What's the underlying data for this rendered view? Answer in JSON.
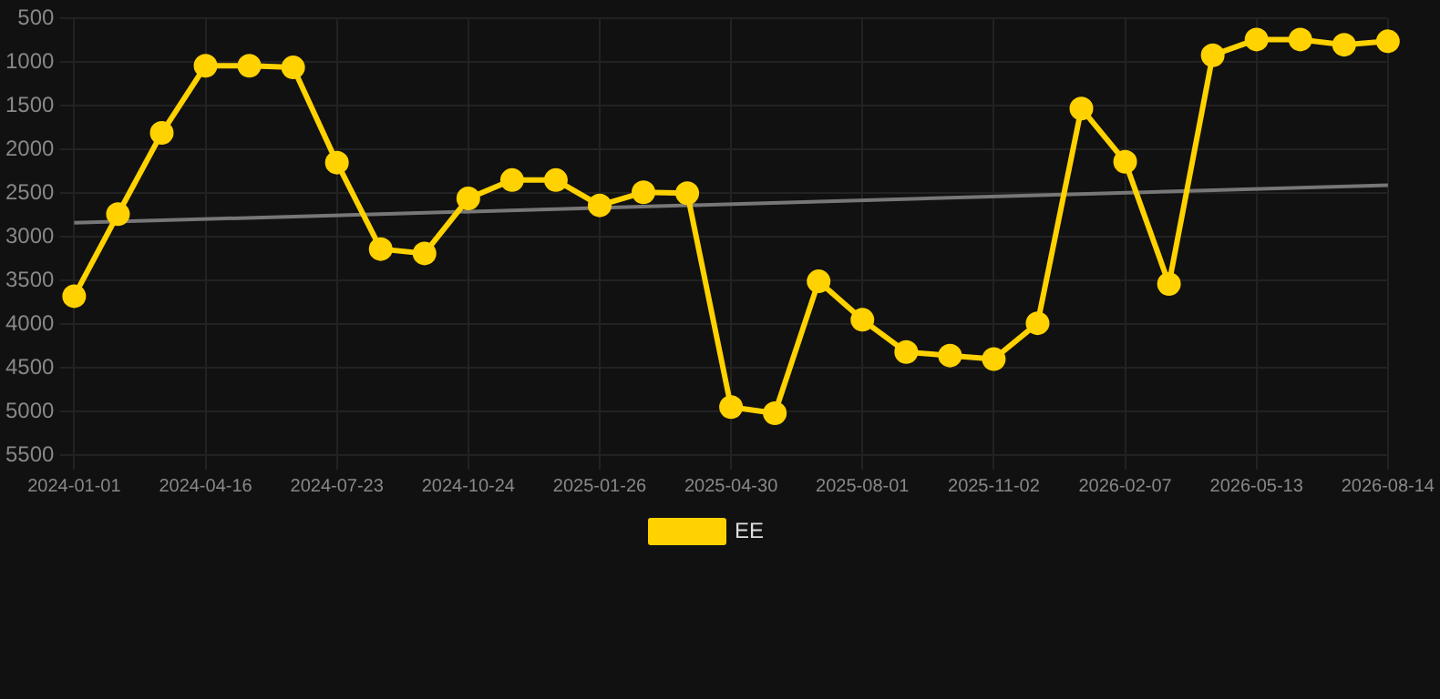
{
  "chart_data": {
    "type": "line",
    "categories": [
      "2024-01-01",
      null,
      null,
      "2024-04-16",
      null,
      null,
      "2024-07-23",
      null,
      null,
      "2024-10-24",
      null,
      null,
      "2025-01-26",
      null,
      null,
      "2025-04-30",
      null,
      null,
      "2025-08-01",
      null,
      null,
      "2025-11-02",
      null,
      null,
      "2026-02-07",
      null,
      null,
      "2026-05-13",
      null,
      null,
      "2026-08-14"
    ],
    "series": [
      {
        "name": "EE",
        "color": "#ffd200",
        "marker": "circle",
        "values": [
          3680,
          2740,
          1810,
          1040,
          1040,
          1060,
          2150,
          3140,
          3190,
          2560,
          2350,
          2350,
          2640,
          2490,
          2500,
          4950,
          5020,
          3510,
          3950,
          4320,
          4360,
          4400,
          3990,
          1530,
          2140,
          3540,
          920,
          740,
          740,
          800,
          760
        ]
      },
      {
        "color": "#777777",
        "marker": "none",
        "values": [
          2840,
          null,
          null,
          null,
          null,
          null,
          null,
          null,
          null,
          null,
          null,
          null,
          null,
          null,
          null,
          null,
          null,
          null,
          null,
          null,
          null,
          null,
          null,
          null,
          null,
          null,
          null,
          null,
          null,
          null,
          2410
        ]
      }
    ],
    "ylim": [
      5500,
      500
    ],
    "yticks": [
      500,
      1000,
      1500,
      2000,
      2500,
      3000,
      3500,
      4000,
      4500,
      5000,
      5500
    ],
    "grid": true,
    "legend": "bottom"
  }
}
